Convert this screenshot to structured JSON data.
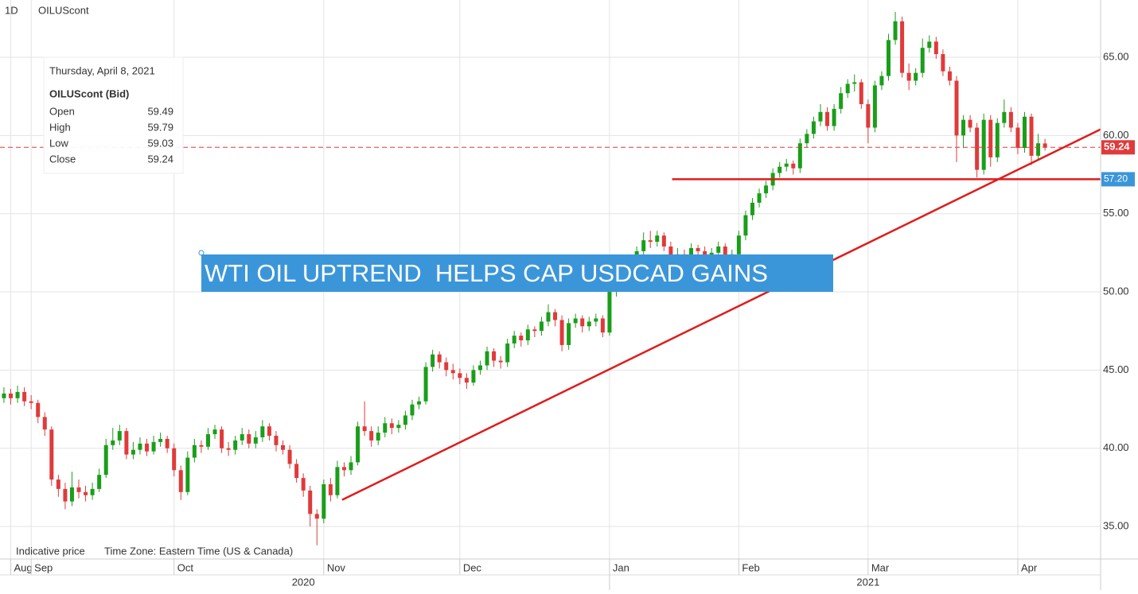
{
  "chart_data": {
    "type": "candlestick",
    "header": {
      "interval": "1D",
      "symbol": "OILUScont"
    },
    "footer": [
      "Indicative price",
      "Time Zone: Eastern Time (US & Canada)"
    ],
    "annotation": "WTI OIL UPTREND  HELPS CAP USDCAD GAINS",
    "tooltip": {
      "date": "Thursday, April 8, 2021",
      "series": "OILUScont (Bid)",
      "fields": [
        "Open",
        "High",
        "Low",
        "Close"
      ],
      "index": 153
    },
    "up_color": "#1a9e1a",
    "down_color": "#e03a3a",
    "ylim": [
      32.92,
      68.66
    ],
    "xlim": [
      -0.58,
      161.17
    ],
    "yticks": [
      {
        "value": 35,
        "label": "35.00"
      },
      {
        "value": 40,
        "label": "40.00"
      },
      {
        "value": 45,
        "label": "45.00"
      },
      {
        "value": 50,
        "label": "50.00"
      },
      {
        "value": 55,
        "label": "55.00"
      },
      {
        "value": 60,
        "label": "60.00"
      },
      {
        "value": 65,
        "label": "65.00"
      }
    ],
    "xticks": [
      {
        "value": 1,
        "label": "Aug"
      },
      {
        "value": 4,
        "label": "Sep"
      },
      {
        "value": 25,
        "label": "Oct"
      },
      {
        "value": 47,
        "label": "Nov"
      },
      {
        "value": 67,
        "label": "Dec"
      },
      {
        "value": 89,
        "label": "Jan"
      },
      {
        "value": 108,
        "label": "Feb"
      },
      {
        "value": 127,
        "label": "Mar"
      },
      {
        "value": 149,
        "label": "Apr"
      }
    ],
    "year_ticks": [
      {
        "value": 44,
        "label": "2020"
      },
      {
        "value": 127,
        "label": "2021"
      }
    ],
    "year_separator": 89,
    "grid": true,
    "support": {
      "x_start": 98.2,
      "value": 57.2,
      "label": "57.20",
      "color": "#e01b1b",
      "label_color": "#3b96d9"
    },
    "trendline": {
      "x": [
        49.7,
        161.2
      ],
      "y": [
        36.7,
        60.4
      ],
      "color": "#e01b1b"
    },
    "ohlc": [
      [
        43.2,
        43.9,
        42.9,
        43.5
      ],
      [
        43.5,
        43.8,
        42.8,
        43.2
      ],
      [
        43.2,
        44.0,
        42.9,
        43.6
      ],
      [
        43.6,
        43.9,
        42.7,
        43.0
      ],
      [
        43.0,
        43.4,
        42.5,
        42.9
      ],
      [
        42.9,
        43.1,
        41.6,
        42.0
      ],
      [
        42.0,
        42.3,
        40.8,
        41.2
      ],
      [
        41.2,
        41.4,
        37.6,
        38.0
      ],
      [
        38.0,
        38.3,
        36.9,
        37.4
      ],
      [
        37.4,
        37.8,
        36.1,
        36.6
      ],
      [
        36.6,
        38.5,
        36.3,
        37.5
      ],
      [
        37.5,
        38.0,
        36.8,
        37.2
      ],
      [
        37.2,
        37.6,
        36.6,
        37.0
      ],
      [
        37.0,
        37.8,
        36.7,
        37.4
      ],
      [
        37.4,
        38.7,
        37.2,
        38.3
      ],
      [
        38.3,
        40.6,
        38.1,
        40.2
      ],
      [
        40.2,
        41.3,
        39.9,
        40.5
      ],
      [
        40.5,
        41.5,
        40.2,
        41.1
      ],
      [
        41.1,
        41.3,
        39.3,
        39.6
      ],
      [
        39.6,
        40.4,
        39.3,
        39.9
      ],
      [
        39.9,
        40.7,
        39.6,
        40.3
      ],
      [
        40.3,
        40.6,
        39.5,
        39.8
      ],
      [
        39.8,
        40.8,
        39.6,
        40.4
      ],
      [
        40.4,
        41.0,
        40.1,
        40.6
      ],
      [
        40.6,
        40.8,
        39.7,
        40.0
      ],
      [
        40.0,
        40.3,
        38.2,
        38.6
      ],
      [
        38.6,
        38.9,
        36.7,
        37.2
      ],
      [
        37.2,
        39.8,
        37.0,
        39.4
      ],
      [
        39.4,
        40.6,
        39.1,
        40.2
      ],
      [
        40.2,
        40.5,
        39.7,
        40.1
      ],
      [
        40.1,
        41.3,
        39.9,
        40.9
      ],
      [
        40.9,
        41.5,
        40.6,
        41.2
      ],
      [
        41.2,
        41.4,
        39.7,
        40.0
      ],
      [
        40.0,
        40.4,
        39.5,
        39.9
      ],
      [
        39.9,
        40.8,
        39.6,
        40.5
      ],
      [
        40.5,
        41.3,
        40.2,
        40.9
      ],
      [
        40.9,
        41.2,
        40.0,
        40.3
      ],
      [
        40.3,
        41.1,
        40.0,
        40.7
      ],
      [
        40.7,
        41.8,
        40.4,
        41.4
      ],
      [
        41.4,
        41.6,
        40.5,
        40.8
      ],
      [
        40.8,
        41.1,
        39.8,
        40.2
      ],
      [
        40.2,
        40.5,
        39.6,
        39.9
      ],
      [
        39.9,
        40.2,
        38.7,
        39.0
      ],
      [
        39.0,
        39.3,
        37.8,
        38.1
      ],
      [
        38.1,
        38.4,
        36.9,
        37.3
      ],
      [
        37.3,
        37.6,
        35.0,
        35.8
      ],
      [
        35.8,
        36.1,
        33.8,
        35.5
      ],
      [
        35.5,
        38.0,
        35.2,
        37.7
      ],
      [
        37.7,
        38.1,
        36.6,
        37.0
      ],
      [
        37.0,
        39.2,
        36.8,
        38.8
      ],
      [
        38.8,
        39.1,
        38.2,
        38.6
      ],
      [
        38.6,
        39.5,
        38.3,
        39.1
      ],
      [
        39.1,
        41.7,
        38.9,
        41.4
      ],
      [
        41.4,
        43.0,
        40.8,
        41.1
      ],
      [
        41.1,
        41.4,
        40.1,
        40.5
      ],
      [
        40.5,
        41.4,
        40.2,
        41.0
      ],
      [
        41.0,
        42.0,
        40.7,
        41.6
      ],
      [
        41.6,
        41.9,
        40.9,
        41.3
      ],
      [
        41.3,
        41.8,
        41.0,
        41.5
      ],
      [
        41.5,
        42.4,
        41.2,
        42.1
      ],
      [
        42.1,
        43.1,
        41.8,
        42.8
      ],
      [
        42.8,
        43.3,
        42.5,
        43.0
      ],
      [
        43.0,
        45.5,
        42.8,
        45.2
      ],
      [
        45.2,
        46.3,
        44.9,
        46.0
      ],
      [
        46.0,
        46.2,
        45.1,
        45.5
      ],
      [
        45.5,
        45.8,
        44.6,
        45.0
      ],
      [
        45.0,
        45.4,
        44.4,
        44.8
      ],
      [
        44.8,
        45.1,
        44.1,
        44.5
      ],
      [
        44.5,
        44.8,
        43.8,
        44.2
      ],
      [
        44.2,
        45.3,
        44.0,
        45.0
      ],
      [
        45.0,
        45.6,
        44.7,
        45.3
      ],
      [
        45.3,
        46.5,
        45.0,
        46.2
      ],
      [
        46.2,
        46.4,
        45.2,
        45.6
      ],
      [
        45.6,
        45.9,
        45.1,
        45.5
      ],
      [
        45.5,
        47.0,
        45.2,
        46.7
      ],
      [
        46.7,
        47.5,
        46.4,
        47.2
      ],
      [
        47.2,
        47.4,
        46.5,
        46.9
      ],
      [
        46.9,
        47.9,
        46.6,
        47.6
      ],
      [
        47.6,
        47.8,
        47.1,
        47.5
      ],
      [
        47.5,
        48.4,
        47.2,
        48.1
      ],
      [
        48.1,
        49.2,
        47.8,
        48.7
      ],
      [
        48.7,
        48.9,
        47.8,
        48.2
      ],
      [
        48.2,
        48.5,
        46.2,
        46.6
      ],
      [
        46.6,
        48.3,
        46.3,
        48.0
      ],
      [
        48.0,
        48.6,
        47.7,
        48.3
      ],
      [
        48.3,
        48.5,
        47.4,
        47.8
      ],
      [
        47.8,
        48.4,
        47.5,
        48.1
      ],
      [
        48.1,
        48.6,
        47.8,
        48.3
      ],
      [
        48.3,
        48.5,
        47.1,
        47.4
      ],
      [
        47.4,
        50.3,
        47.2,
        50.0
      ],
      [
        50.0,
        50.9,
        49.7,
        50.6
      ],
      [
        50.6,
        51.4,
        50.3,
        51.1
      ],
      [
        51.1,
        52.4,
        50.8,
        52.1
      ],
      [
        52.1,
        52.9,
        51.8,
        52.6
      ],
      [
        52.6,
        53.8,
        52.3,
        53.3
      ],
      [
        53.3,
        53.9,
        52.8,
        53.2
      ],
      [
        53.2,
        53.9,
        52.9,
        53.6
      ],
      [
        53.6,
        53.8,
        52.6,
        52.9
      ],
      [
        52.9,
        53.2,
        51.9,
        52.2
      ],
      [
        52.2,
        52.8,
        51.9,
        52.4
      ],
      [
        52.4,
        52.7,
        51.7,
        52.0
      ],
      [
        52.0,
        53.1,
        51.7,
        52.8
      ],
      [
        52.8,
        53.0,
        52.3,
        52.6
      ],
      [
        52.6,
        52.9,
        52.0,
        52.3
      ],
      [
        52.3,
        52.8,
        52.0,
        52.5
      ],
      [
        52.5,
        53.2,
        52.2,
        52.9
      ],
      [
        52.9,
        53.1,
        51.9,
        52.2
      ],
      [
        52.2,
        52.7,
        51.9,
        52.4
      ],
      [
        52.4,
        53.9,
        52.1,
        53.6
      ],
      [
        53.6,
        55.2,
        53.3,
        54.9
      ],
      [
        54.9,
        56.0,
        54.6,
        55.7
      ],
      [
        55.7,
        56.6,
        55.4,
        56.3
      ],
      [
        56.3,
        57.1,
        56.0,
        56.8
      ],
      [
        56.8,
        57.9,
        56.5,
        57.6
      ],
      [
        57.6,
        58.3,
        57.3,
        58.0
      ],
      [
        58.0,
        58.5,
        57.7,
        58.2
      ],
      [
        58.2,
        58.4,
        57.5,
        57.9
      ],
      [
        57.9,
        59.8,
        57.6,
        59.5
      ],
      [
        59.5,
        60.4,
        59.2,
        60.1
      ],
      [
        60.1,
        61.2,
        59.8,
        60.9
      ],
      [
        60.9,
        62.0,
        60.6,
        61.5
      ],
      [
        61.5,
        61.8,
        60.3,
        60.6
      ],
      [
        60.6,
        62.0,
        60.3,
        61.7
      ],
      [
        61.7,
        63.1,
        61.4,
        62.7
      ],
      [
        62.7,
        63.6,
        62.4,
        63.3
      ],
      [
        63.3,
        63.9,
        62.8,
        63.4
      ],
      [
        63.4,
        63.6,
        61.7,
        62.0
      ],
      [
        62.0,
        62.3,
        59.5,
        60.5
      ],
      [
        60.5,
        63.5,
        60.2,
        63.2
      ],
      [
        63.2,
        64.1,
        62.9,
        63.8
      ],
      [
        63.8,
        66.5,
        63.5,
        66.1
      ],
      [
        66.1,
        67.9,
        65.8,
        67.3
      ],
      [
        67.3,
        67.6,
        63.7,
        64.0
      ],
      [
        64.0,
        64.6,
        62.9,
        63.5
      ],
      [
        63.5,
        64.3,
        63.2,
        64.0
      ],
      [
        64.0,
        66.2,
        63.7,
        65.6
      ],
      [
        65.6,
        66.4,
        65.3,
        66.0
      ],
      [
        66.0,
        66.3,
        64.9,
        65.2
      ],
      [
        65.2,
        65.5,
        63.8,
        64.1
      ],
      [
        64.1,
        64.4,
        63.2,
        63.5
      ],
      [
        63.5,
        63.8,
        58.3,
        60.0
      ],
      [
        60.0,
        61.3,
        59.2,
        61.0
      ],
      [
        61.0,
        61.3,
        60.2,
        60.5
      ],
      [
        60.5,
        60.8,
        57.3,
        57.8
      ],
      [
        57.8,
        61.4,
        57.5,
        61.0
      ],
      [
        61.0,
        61.3,
        58.0,
        58.6
      ],
      [
        58.6,
        61.1,
        58.3,
        60.8
      ],
      [
        60.8,
        62.3,
        60.5,
        61.5
      ],
      [
        61.5,
        61.8,
        60.2,
        60.5
      ],
      [
        60.5,
        60.8,
        58.8,
        59.2
      ],
      [
        59.2,
        61.5,
        58.9,
        61.2
      ],
      [
        61.2,
        61.4,
        58.1,
        58.7
      ],
      [
        58.7,
        60.1,
        58.4,
        59.5
      ],
      [
        59.49,
        59.79,
        59.03,
        59.24
      ]
    ]
  }
}
